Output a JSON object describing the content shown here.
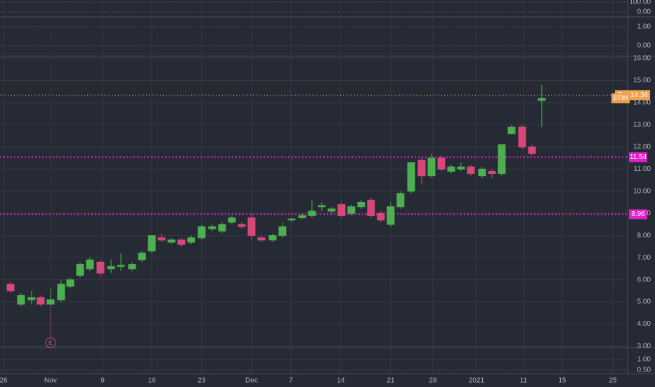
{
  "chart_data": {
    "type": "candlestick",
    "symbol": "STIM",
    "x": [
      0.71,
      1.78,
      2.85,
      3.78,
      4.78,
      5.85,
      6.78,
      7.78,
      8.78,
      9.85,
      10.93,
      11.93,
      13.07,
      14.07,
      15.07,
      16.07,
      17.07,
      18.07,
      19.07,
      20.14,
      21.21,
      22.21,
      23.21,
      24.21,
      25.21,
      26.21,
      27.35,
      28.35,
      29.28,
      30.35,
      31.35,
      32.35,
      33.35,
      34.35,
      35.35,
      36.35,
      37.35,
      38.35,
      39.35,
      40.35,
      41.43,
      42.5,
      43.5,
      44.5,
      45.5,
      46.5,
      47.5,
      48.64,
      49.64,
      50.64,
      51.64,
      52.71,
      53.71,
      54.71
    ],
    "open": [
      5.8,
      4.9,
      5.1,
      5.2,
      4.9,
      5.1,
      5.7,
      6.2,
      6.5,
      6.8,
      6.5,
      6.6,
      6.5,
      6.9,
      7.3,
      7.9,
      7.7,
      7.8,
      7.7,
      7.9,
      8.3,
      8.2,
      8.6,
      8.5,
      8.8,
      7.9,
      7.8,
      8.0,
      8.7,
      8.8,
      8.9,
      9.3,
      9.1,
      9.4,
      9.0,
      9.3,
      9.6,
      9.0,
      8.5,
      9.3,
      10.0,
      11.4,
      10.7,
      11.5,
      10.9,
      11.0,
      11.1,
      10.7,
      10.9,
      10.8,
      12.6,
      12.9,
      12.0,
      14.1
    ],
    "high": [
      5.9,
      5.4,
      5.5,
      5.3,
      5.6,
      6.0,
      6.1,
      6.8,
      7.0,
      6.9,
      6.9,
      7.2,
      6.8,
      7.3,
      8.0,
      8.1,
      7.9,
      7.9,
      8.0,
      8.5,
      8.5,
      8.6,
      8.9,
      8.6,
      9.0,
      8.0,
      8.1,
      8.6,
      8.8,
      9.0,
      9.6,
      9.5,
      9.3,
      9.5,
      9.4,
      9.6,
      9.7,
      9.1,
      9.5,
      10.0,
      11.3,
      11.5,
      11.7,
      11.6,
      11.2,
      11.3,
      11.2,
      11.1,
      11.0,
      12.1,
      13.0,
      13.0,
      12.1,
      14.8
    ],
    "low": [
      5.4,
      4.8,
      4.9,
      4.8,
      4.9,
      5.0,
      5.6,
      6.1,
      6.4,
      6.1,
      6.3,
      6.4,
      6.4,
      6.8,
      7.2,
      7.7,
      7.6,
      7.5,
      7.6,
      7.8,
      8.2,
      8.1,
      8.5,
      8.3,
      7.8,
      7.7,
      7.7,
      7.9,
      8.6,
      8.7,
      8.8,
      9.1,
      9.0,
      8.8,
      8.9,
      9.2,
      8.8,
      8.6,
      8.4,
      9.2,
      9.9,
      10.3,
      10.6,
      10.9,
      10.8,
      10.9,
      10.7,
      10.6,
      10.6,
      10.7,
      12.6,
      11.9,
      11.6,
      12.9
    ],
    "close": [
      5.5,
      5.3,
      5.2,
      4.9,
      5.1,
      5.8,
      6.0,
      6.7,
      6.9,
      6.3,
      6.6,
      6.65,
      6.7,
      7.2,
      8.0,
      7.8,
      7.8,
      7.6,
      7.9,
      8.4,
      8.4,
      8.5,
      8.8,
      8.4,
      8.0,
      7.8,
      8.0,
      8.4,
      8.75,
      8.9,
      9.1,
      9.35,
      9.2,
      8.9,
      9.3,
      9.5,
      8.9,
      8.7,
      9.3,
      9.9,
      11.3,
      10.7,
      11.5,
      11.0,
      11.1,
      11.1,
      10.8,
      11.0,
      10.8,
      12.1,
      12.9,
      12.0,
      11.7,
      14.2
    ],
    "up_color": "#4caf50",
    "down_color": "#d6487a",
    "ylim": [
      3,
      16
    ],
    "yticks": [
      {
        "value": 3,
        "label": "3.00"
      },
      {
        "value": 4,
        "label": "4.00"
      },
      {
        "value": 5,
        "label": "5.00"
      },
      {
        "value": 6,
        "label": "6.00"
      },
      {
        "value": 7,
        "label": "7.00"
      },
      {
        "value": 8,
        "label": "8.00"
      },
      {
        "value": 9,
        "label": "9.00"
      },
      {
        "value": 10,
        "label": "10.00"
      },
      {
        "value": 11,
        "label": "11.00"
      },
      {
        "value": 12,
        "label": "12.00"
      },
      {
        "value": 13,
        "label": "13.00"
      },
      {
        "value": 14,
        "label": "14.00"
      },
      {
        "value": 15,
        "label": "15.00"
      },
      {
        "value": 16,
        "label": "16.00"
      }
    ],
    "xlim": [
      -0.36,
      63.43
    ],
    "xticks": [
      {
        "value": 0,
        "label": "26"
      },
      {
        "value": 4.78,
        "label": "Nov"
      },
      {
        "value": 10.07,
        "label": "9"
      },
      {
        "value": 15.07,
        "label": "16"
      },
      {
        "value": 20.14,
        "label": "23"
      },
      {
        "value": 25.21,
        "label": "Dec"
      },
      {
        "value": 29.21,
        "label": "7"
      },
      {
        "value": 34.28,
        "label": "14"
      },
      {
        "value": 39.35,
        "label": "21"
      },
      {
        "value": 43.64,
        "label": "28"
      },
      {
        "value": 48.07,
        "label": "2021"
      },
      {
        "value": 52.85,
        "label": "11"
      },
      {
        "value": 56.78,
        "label": "15"
      },
      {
        "value": 61.93,
        "label": "25"
      }
    ],
    "grid": true,
    "levels": [
      11.54,
      8.96
    ],
    "level_color": "#e020c8",
    "premarket": {
      "label": "Pre",
      "value": 14.34,
      "color": "#f0a050"
    },
    "earnings": {
      "label": "E",
      "x": 4.78
    },
    "indicators": [
      {
        "ylim": [
          0,
          100
        ],
        "yticks": [
          {
            "value": 100,
            "label": "100.00"
          },
          {
            "value": 0,
            "label": "0.00"
          }
        ]
      },
      {
        "ylim": [
          0,
          1
        ],
        "yticks": [
          {
            "value": 1,
            "label": "1.00"
          },
          {
            "value": 0,
            "label": "0.00"
          }
        ]
      },
      {
        "ylim": [
          0.5,
          1
        ],
        "yticks": [
          {
            "value": 1,
            "label": "1.00"
          },
          {
            "value": 0.5,
            "label": "0.50"
          }
        ]
      }
    ]
  }
}
